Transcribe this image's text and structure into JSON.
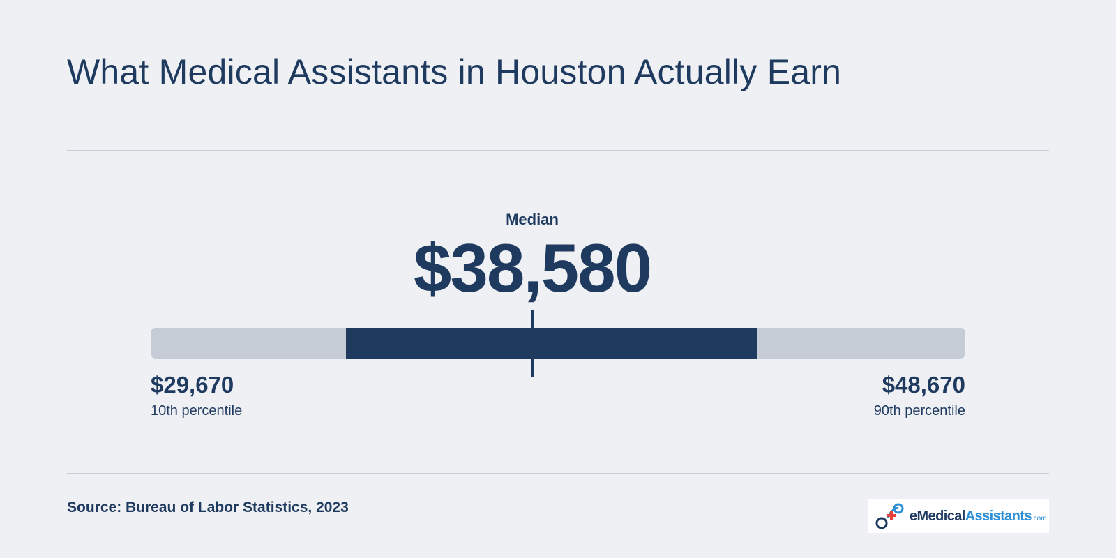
{
  "title": "What Medical Assistants in Houston Actually Earn",
  "chart_data": {
    "type": "range",
    "median_label": "Median",
    "median_display": "$38,580",
    "median": 38580,
    "min_label": "10th percentile",
    "min_display": "$29,670",
    "min": 29670,
    "max_label": "90th percentile",
    "max_display": "$48,670",
    "max": 48670,
    "highlight_range_fraction": [
      0.24,
      0.745
    ],
    "colors": {
      "highlight": "#1f3a5f",
      "track": "#c6ccd6"
    }
  },
  "source": "Source: Bureau of Labor Statistics, 2023",
  "logo": {
    "e": "e",
    "medical": "Medical",
    "assistants": "Assistants",
    "com": ".com"
  },
  "colors": {
    "background": "#eff0f4",
    "primary": "#1f3a5f",
    "accent": "#2d8fd5",
    "logo_cross": "#e8413c"
  }
}
